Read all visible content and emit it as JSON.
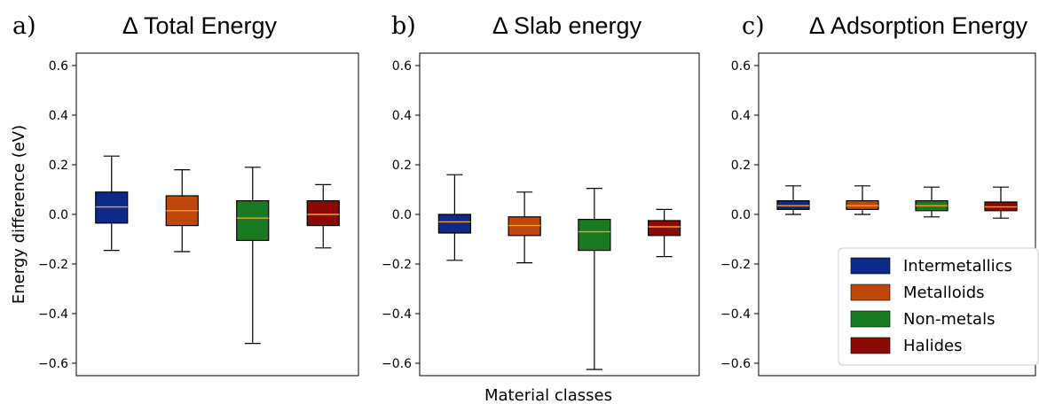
{
  "figure": {
    "xlabel": "Material classes",
    "ylabel": "Energy difference (eV)"
  },
  "legend": {
    "placement": "lower-right of panel c",
    "entries": [
      {
        "label": "Intermetallics",
        "color": "#0d2a8a"
      },
      {
        "label": "Metalloids",
        "color": "#c0470c"
      },
      {
        "label": "Non-metals",
        "color": "#1a7a22"
      },
      {
        "label": "Halides",
        "color": "#8b0b04"
      }
    ]
  },
  "chart_data": [
    {
      "type": "box",
      "panel_letter": "a)",
      "title": "Δ Total Energy",
      "ylim": [
        -0.65,
        0.65
      ],
      "yticks": [
        -0.6,
        -0.4,
        -0.2,
        0.0,
        0.2,
        0.4,
        0.6
      ],
      "ytick_labels": [
        "−0.6",
        "−0.4",
        "−0.2",
        "0.0",
        "0.2",
        "0.4",
        "0.6"
      ],
      "categories": [
        "Intermetallics",
        "Metalloids",
        "Non-metals",
        "Halides"
      ],
      "boxes": [
        {
          "whisker_low": -0.145,
          "q1": -0.035,
          "median": 0.03,
          "q3": 0.09,
          "whisker_high": 0.235
        },
        {
          "whisker_low": -0.15,
          "q1": -0.045,
          "median": 0.015,
          "q3": 0.075,
          "whisker_high": 0.18
        },
        {
          "whisker_low": -0.52,
          "q1": -0.105,
          "median": -0.015,
          "q3": 0.055,
          "whisker_high": 0.19
        },
        {
          "whisker_low": -0.135,
          "q1": -0.045,
          "median": 0.0,
          "q3": 0.055,
          "whisker_high": 0.12
        }
      ],
      "grid": false
    },
    {
      "type": "box",
      "panel_letter": "b)",
      "title": "Δ Slab energy",
      "ylim": [
        -0.65,
        0.65
      ],
      "yticks": [
        -0.6,
        -0.4,
        -0.2,
        0.0,
        0.2,
        0.4,
        0.6
      ],
      "ytick_labels": [
        "−0.6",
        "−0.4",
        "−0.2",
        "0.0",
        "0.2",
        "0.4",
        "0.6"
      ],
      "categories": [
        "Intermetallics",
        "Metalloids",
        "Non-metals",
        "Halides"
      ],
      "boxes": [
        {
          "whisker_low": -0.185,
          "q1": -0.075,
          "median": -0.03,
          "q3": 0.0,
          "whisker_high": 0.16
        },
        {
          "whisker_low": -0.195,
          "q1": -0.085,
          "median": -0.045,
          "q3": -0.01,
          "whisker_high": 0.09
        },
        {
          "whisker_low": -0.625,
          "q1": -0.145,
          "median": -0.07,
          "q3": -0.02,
          "whisker_high": 0.105
        },
        {
          "whisker_low": -0.17,
          "q1": -0.085,
          "median": -0.05,
          "q3": -0.025,
          "whisker_high": 0.02
        }
      ],
      "grid": false
    },
    {
      "type": "box",
      "panel_letter": "c)",
      "title": "Δ Adsorption Energy",
      "ylim": [
        -0.65,
        0.65
      ],
      "yticks": [
        -0.6,
        -0.4,
        -0.2,
        0.0,
        0.2,
        0.4,
        0.6
      ],
      "ytick_labels": [
        "−0.6",
        "−0.4",
        "−0.2",
        "0.0",
        "0.2",
        "0.4",
        "0.6"
      ],
      "categories": [
        "Intermetallics",
        "Metalloids",
        "Non-metals",
        "Halides"
      ],
      "boxes": [
        {
          "whisker_low": 0.0,
          "q1": 0.02,
          "median": 0.035,
          "q3": 0.055,
          "whisker_high": 0.115
        },
        {
          "whisker_low": 0.0,
          "q1": 0.02,
          "median": 0.035,
          "q3": 0.055,
          "whisker_high": 0.115
        },
        {
          "whisker_low": -0.01,
          "q1": 0.015,
          "median": 0.035,
          "q3": 0.055,
          "whisker_high": 0.11
        },
        {
          "whisker_low": -0.015,
          "q1": 0.015,
          "median": 0.03,
          "q3": 0.05,
          "whisker_high": 0.11
        }
      ],
      "grid": false
    }
  ]
}
